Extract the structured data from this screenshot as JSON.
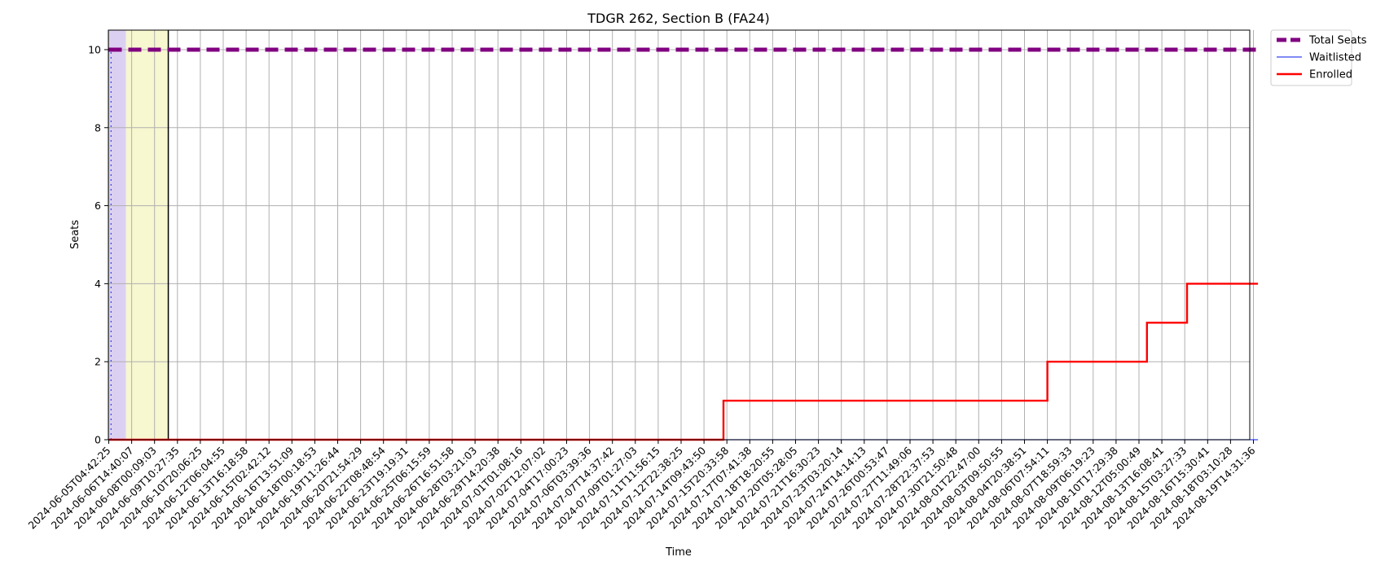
{
  "chart_data": {
    "type": "line",
    "title": "TDGR 262, Section B (FA24)",
    "xlabel": "Time",
    "ylabel": "Seats",
    "ylim": [
      0,
      10.5
    ],
    "yticks": [
      0,
      2,
      4,
      6,
      8,
      10
    ],
    "grid": true,
    "legend_position": "outside-top-right",
    "x_tick_labels": [
      "2024-06-05T04:42:25",
      "2024-06-06T14:40:07",
      "2024-06-08T00:09:03",
      "2024-06-09T10:27:35",
      "2024-06-10T20:06:25",
      "2024-06-12T06:04:55",
      "2024-06-13T16:18:58",
      "2024-06-15T02:42:12",
      "2024-06-16T13:51:09",
      "2024-06-18T00:18:53",
      "2024-06-19T11:26:44",
      "2024-06-20T21:54:29",
      "2024-06-22T08:48:54",
      "2024-06-23T19:19:31",
      "2024-06-25T06:15:59",
      "2024-06-26T16:51:58",
      "2024-06-28T03:21:03",
      "2024-06-29T14:20:38",
      "2024-07-01T01:08:16",
      "2024-07-02T12:07:02",
      "2024-07-04T17:00:23",
      "2024-07-06T03:39:36",
      "2024-07-07T14:37:42",
      "2024-07-09T01:27:03",
      "2024-07-11T11:56:15",
      "2024-07-12T22:38:25",
      "2024-07-14T09:43:50",
      "2024-07-15T20:33:58",
      "2024-07-17T07:41:38",
      "2024-07-18T18:20:55",
      "2024-07-20T05:28:05",
      "2024-07-21T16:30:23",
      "2024-07-23T03:20:14",
      "2024-07-24T14:14:13",
      "2024-07-26T00:53:47",
      "2024-07-27T11:49:06",
      "2024-07-28T22:37:53",
      "2024-07-30T21:50:48",
      "2024-08-01T22:47:00",
      "2024-08-03T09:50:55",
      "2024-08-04T20:38:51",
      "2024-08-06T07:54:11",
      "2024-08-07T18:59:33",
      "2024-08-09T06:19:23",
      "2024-08-10T17:29:38",
      "2024-08-12T05:00:49",
      "2024-08-13T16:08:41",
      "2024-08-15T03:27:33",
      "2024-08-16T15:30:41",
      "2024-08-18T03:10:28",
      "2024-08-19T14:31:36"
    ],
    "shaded_regions": [
      {
        "from_index": 0,
        "to_index": 0.75,
        "color": "#dcd0f2"
      },
      {
        "from_index": 0.75,
        "to_index": 2.6,
        "color": "#f7f7d0"
      }
    ],
    "vertical_line_index": 2.6,
    "series": [
      {
        "name": "Total Seats",
        "color": "#800080",
        "style": "dashed-thick",
        "points": [
          [
            0,
            10
          ],
          [
            50.2,
            10
          ]
        ]
      },
      {
        "name": "Waitlisted",
        "color": "#3344ee",
        "style": "thin",
        "points": [
          [
            0,
            0
          ],
          [
            50.2,
            0
          ]
        ]
      },
      {
        "name": "Enrolled",
        "color": "#ff0000",
        "style": "step",
        "points": [
          [
            0,
            0
          ],
          [
            26.85,
            0
          ],
          [
            26.85,
            1
          ],
          [
            41,
            1
          ],
          [
            41,
            2
          ],
          [
            45.35,
            2
          ],
          [
            45.35,
            3
          ],
          [
            47.1,
            3
          ],
          [
            47.1,
            4
          ],
          [
            50.2,
            4
          ]
        ]
      }
    ]
  }
}
